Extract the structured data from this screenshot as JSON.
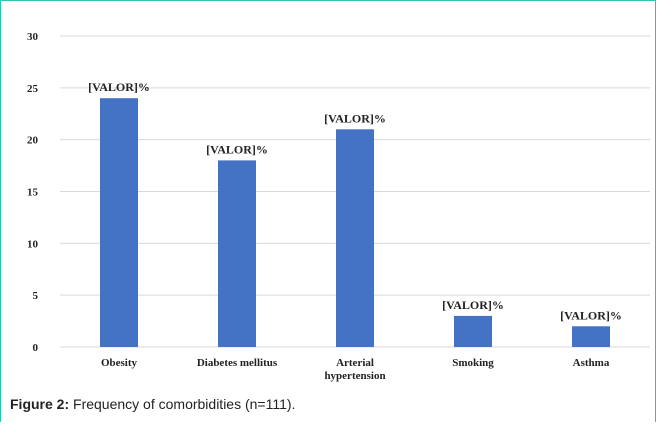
{
  "chart_data": {
    "type": "bar",
    "categories": [
      "Obesity",
      "Diabetes mellitus",
      "Arterial hypertension",
      "Smoking",
      "Asthma"
    ],
    "category_lines": [
      [
        "Obesity"
      ],
      [
        "Diabetes mellitus"
      ],
      [
        "Arterial",
        "hypertension"
      ],
      [
        "Smoking"
      ],
      [
        "Asthma"
      ]
    ],
    "values": [
      24,
      18,
      21,
      3,
      2
    ],
    "data_labels": [
      "[VALOR]%",
      "[VALOR]%",
      "[VALOR]%",
      "[VALOR]%",
      "[VALOR]%"
    ],
    "y_ticks": [
      0,
      5,
      10,
      15,
      20,
      25,
      30
    ],
    "ylim": [
      0,
      30
    ],
    "grid": true,
    "bar_color": "#4472c4",
    "grid_color": "#d9d9d9"
  },
  "caption": {
    "label": "Figure 2:",
    "text": " Frequency of comorbidities (n=111)."
  }
}
